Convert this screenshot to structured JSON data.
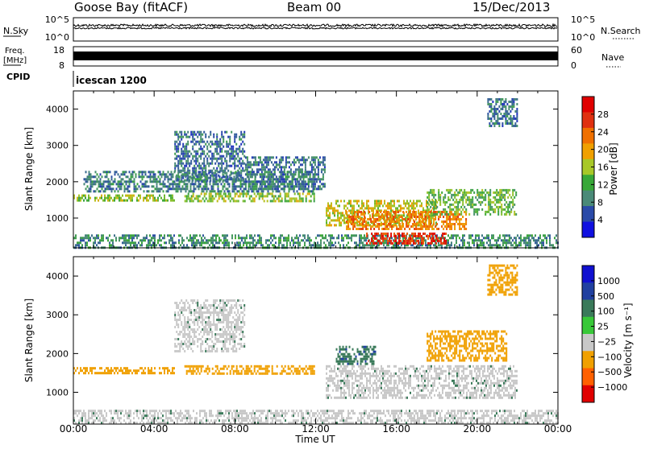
{
  "header": {
    "station": "Goose Bay (fitACF)",
    "beam": "Beam 00",
    "date": "15/Dec/2013"
  },
  "top_panels": {
    "nsky": {
      "label": "N.Sky",
      "right_label": "N.Search",
      "left_ticks": [
        "10^5",
        "10^0"
      ],
      "right_ticks": [
        "10^5",
        "10^0"
      ]
    },
    "freq": {
      "label_lines": [
        "Freq.",
        "[MHz]"
      ],
      "left_ticks": [
        "18",
        "8"
      ],
      "right_label": "Nave",
      "right_ticks": [
        "60",
        "0"
      ]
    },
    "cpid": {
      "label": "CPID",
      "program": "icescan 1200"
    }
  },
  "colors": {
    "power_scale": [
      "#1010e0",
      "#2a4aa8",
      "#4a8a78",
      "#38a838",
      "#a8c828",
      "#f0a000",
      "#f07000",
      "#e03010",
      "#e00000"
    ],
    "velocity_scale": [
      "#e00000",
      "#ff6000",
      "#f0a000",
      "#c8c8c8",
      "#c8c8c8",
      "#38c838",
      "#3a7a5a",
      "#2040a0",
      "#1010d0"
    ]
  },
  "chart_data": [
    {
      "type": "heatmap",
      "name": "Power",
      "ylabel": "Slant Range [km]",
      "xlabel": "Time UT",
      "x_ticks": [
        "00:00",
        "04:00",
        "08:00",
        "12:00",
        "16:00",
        "20:00",
        "00:00"
      ],
      "x_range_hours": [
        0,
        24
      ],
      "y_ticks": [
        1000,
        2000,
        3000,
        4000
      ],
      "ylim": [
        180,
        4500
      ],
      "colorbar": {
        "label": "Power [dB]",
        "ticks": [
          "4",
          "8",
          "12",
          "16",
          "20",
          "24",
          "28"
        ],
        "range": [
          0,
          30
        ]
      },
      "regions": [
        {
          "t": [
            0.0,
            24.0
          ],
          "r": [
            180,
            550
          ],
          "value": 8
        },
        {
          "t": [
            0.0,
            5.0
          ],
          "r": [
            1450,
            1650
          ],
          "value": 14
        },
        {
          "t": [
            5.5,
            12.0
          ],
          "r": [
            1450,
            1700
          ],
          "value": 14
        },
        {
          "t": [
            12.5,
            18.0
          ],
          "r": [
            800,
            1500
          ],
          "value": 16
        },
        {
          "t": [
            13.5,
            19.5
          ],
          "r": [
            700,
            1200
          ],
          "value": 22
        },
        {
          "t": [
            14.5,
            18.5
          ],
          "r": [
            300,
            600
          ],
          "value": 27
        },
        {
          "t": [
            17.5,
            22.0
          ],
          "r": [
            1100,
            1800
          ],
          "value": 12
        },
        {
          "t": [
            5.0,
            8.5
          ],
          "r": [
            2000,
            3400
          ],
          "value": 6
        },
        {
          "t": [
            8.5,
            12.5
          ],
          "r": [
            1800,
            2700
          ],
          "value": 6
        },
        {
          "t": [
            20.5,
            22.0
          ],
          "r": [
            3500,
            4300
          ],
          "value": 6
        },
        {
          "t": [
            0.5,
            12.0
          ],
          "r": [
            1700,
            2300
          ],
          "value": 7
        }
      ]
    },
    {
      "type": "heatmap",
      "name": "Velocity",
      "ylabel": "Slant Range [km]",
      "xlabel": "Time UT",
      "x_ticks": [
        "00:00",
        "04:00",
        "08:00",
        "12:00",
        "16:00",
        "20:00",
        "00:00"
      ],
      "x_range_hours": [
        0,
        24
      ],
      "y_ticks": [
        1000,
        2000,
        3000,
        4000
      ],
      "ylim": [
        180,
        4500
      ],
      "colorbar": {
        "label": "Velocity [m s⁻¹]",
        "ticks": [
          "1000",
          "500",
          "100",
          "25",
          "−25",
          "−100",
          "−500",
          "−1000"
        ]
      },
      "regions": [
        {
          "t": [
            0.0,
            24.0
          ],
          "r": [
            180,
            550
          ],
          "value": 0
        },
        {
          "t": [
            0.0,
            5.0
          ],
          "r": [
            1450,
            1650
          ],
          "value": -200
        },
        {
          "t": [
            5.5,
            12.0
          ],
          "r": [
            1450,
            1700
          ],
          "value": -150
        },
        {
          "t": [
            12.5,
            22.0
          ],
          "r": [
            800,
            1700
          ],
          "value": 0
        },
        {
          "t": [
            5.0,
            8.5
          ],
          "r": [
            2000,
            3400
          ],
          "value": 0
        },
        {
          "t": [
            13.0,
            15.0
          ],
          "r": [
            1700,
            2200
          ],
          "value": 80
        },
        {
          "t": [
            17.5,
            21.5
          ],
          "r": [
            1800,
            2600
          ],
          "value": -300
        },
        {
          "t": [
            20.5,
            22.0
          ],
          "r": [
            3500,
            4300
          ],
          "value": -300
        }
      ]
    }
  ]
}
